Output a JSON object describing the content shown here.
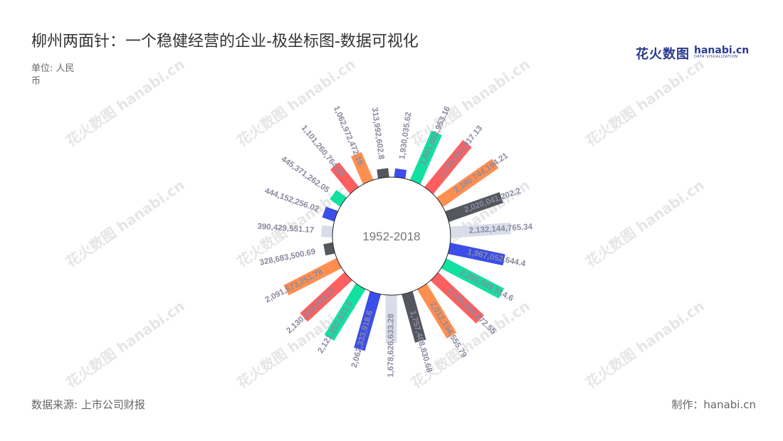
{
  "header": {
    "title": "柳州两面针：一个稳健经营的企业-极坐标图-数据可视化",
    "unit": "单位: 人民币"
  },
  "logo": {
    "cn": "花火数图",
    "en": "hanabi.cn",
    "sub": "DATA VISUALIZATION"
  },
  "footer": {
    "source": "数据来源: 上市公司财报",
    "maker": "制作：hanabi.cn"
  },
  "watermark": "花火数图 hanabi.cn",
  "colors": {
    "palette": [
      "#3b4ee8",
      "#12e0a0",
      "#ff5f5f",
      "#ff8f50",
      "#55575f",
      "#d9dde8"
    ]
  },
  "chart_data": {
    "type": "polar-bar",
    "center_label": "1952-2018",
    "labels": [
      "1,930,035.62",
      "1,891,602,953.16",
      "2,135,953,917.13",
      "2,380,744,194.21",
      "2,020,041,202.2",
      "2,132,144,765.34",
      "1,967,052,644.4",
      "2,286,669,514.6",
      "2,198,684,672.55",
      "2,012,194,555.79",
      "1,757,468,830.68",
      "1,678,626,633.28",
      "2,062,333,918.6",
      "2,121,252,531.6",
      "2,130,216,653.37",
      "2,091,573,251.78",
      "328,683,500.69",
      "390,429,551.17",
      "444,152,256.02",
      "445,371,262.05",
      "1,101,260,764.86",
      "1,062,972,472.16",
      "313,992,602.8"
    ],
    "values": [
      1930035.62,
      1891602953.16,
      2135953917.13,
      2380744194.21,
      2020041202.2,
      2132144765.34,
      1967052644.4,
      2286669514.6,
      2198684672.55,
      2012194555.79,
      1757468830.68,
      1678626633.28,
      2062333918.6,
      2121252531.6,
      2130216653.37,
      2091573251.78,
      328683500.69,
      390429551.17,
      444152256.02,
      445371262.05,
      1101260764.86,
      1062972472.16,
      313992602.8
    ]
  }
}
